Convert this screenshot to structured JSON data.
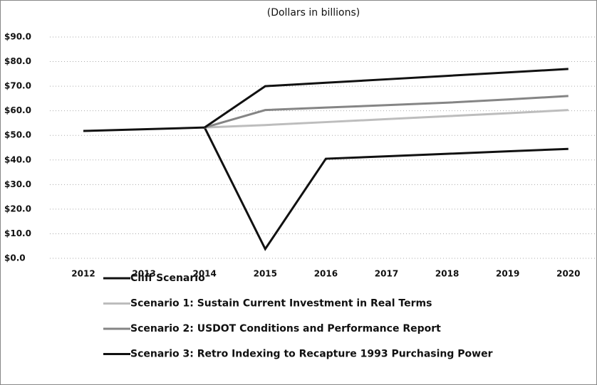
{
  "chart_data": {
    "type": "line",
    "title": "(Dollars in billions)",
    "categories": [
      "2012",
      "2013",
      "2014",
      "2015",
      "2016",
      "2017",
      "2018",
      "2019",
      "2020"
    ],
    "series": [
      {
        "name": "Cliff Scenario",
        "color": "#111111",
        "values": [
          51.8,
          52.5,
          53.2,
          3.8,
          40.5,
          41.5,
          42.5,
          43.5,
          44.5
        ]
      },
      {
        "name": "Scenario 1: Sustain Current Investment in Real Terms",
        "color": "#bdbdbd",
        "values": [
          null,
          null,
          53.2,
          54.2,
          55.4,
          56.6,
          57.8,
          59.0,
          60.3
        ]
      },
      {
        "name": "Scenario 2: USDOT Conditions and Performance Report",
        "color": "#858585",
        "values": [
          null,
          null,
          53.2,
          60.3,
          61.3,
          62.3,
          63.3,
          64.6,
          66.0
        ]
      },
      {
        "name": "Scenario 3: Retro Indexing to Recapture 1993 Purchasing Power",
        "color": "#111111",
        "values": [
          null,
          null,
          53.2,
          70.0,
          71.4,
          72.8,
          74.2,
          75.6,
          77.0
        ]
      }
    ],
    "ylim": [
      0,
      90
    ],
    "yticks": [
      {
        "value": 0,
        "label": "$0.0"
      },
      {
        "value": 10,
        "label": "$10.0"
      },
      {
        "value": 20,
        "label": "$20.0"
      },
      {
        "value": 30,
        "label": "$30.0"
      },
      {
        "value": 40,
        "label": "$40.0"
      },
      {
        "value": 50,
        "label": "$50.0"
      },
      {
        "value": 60,
        "label": "$60.0"
      },
      {
        "value": 70,
        "label": "$70.0"
      },
      {
        "value": 80,
        "label": "$80.0"
      },
      {
        "value": 90,
        "label": "$90.0"
      }
    ],
    "grid": true
  }
}
